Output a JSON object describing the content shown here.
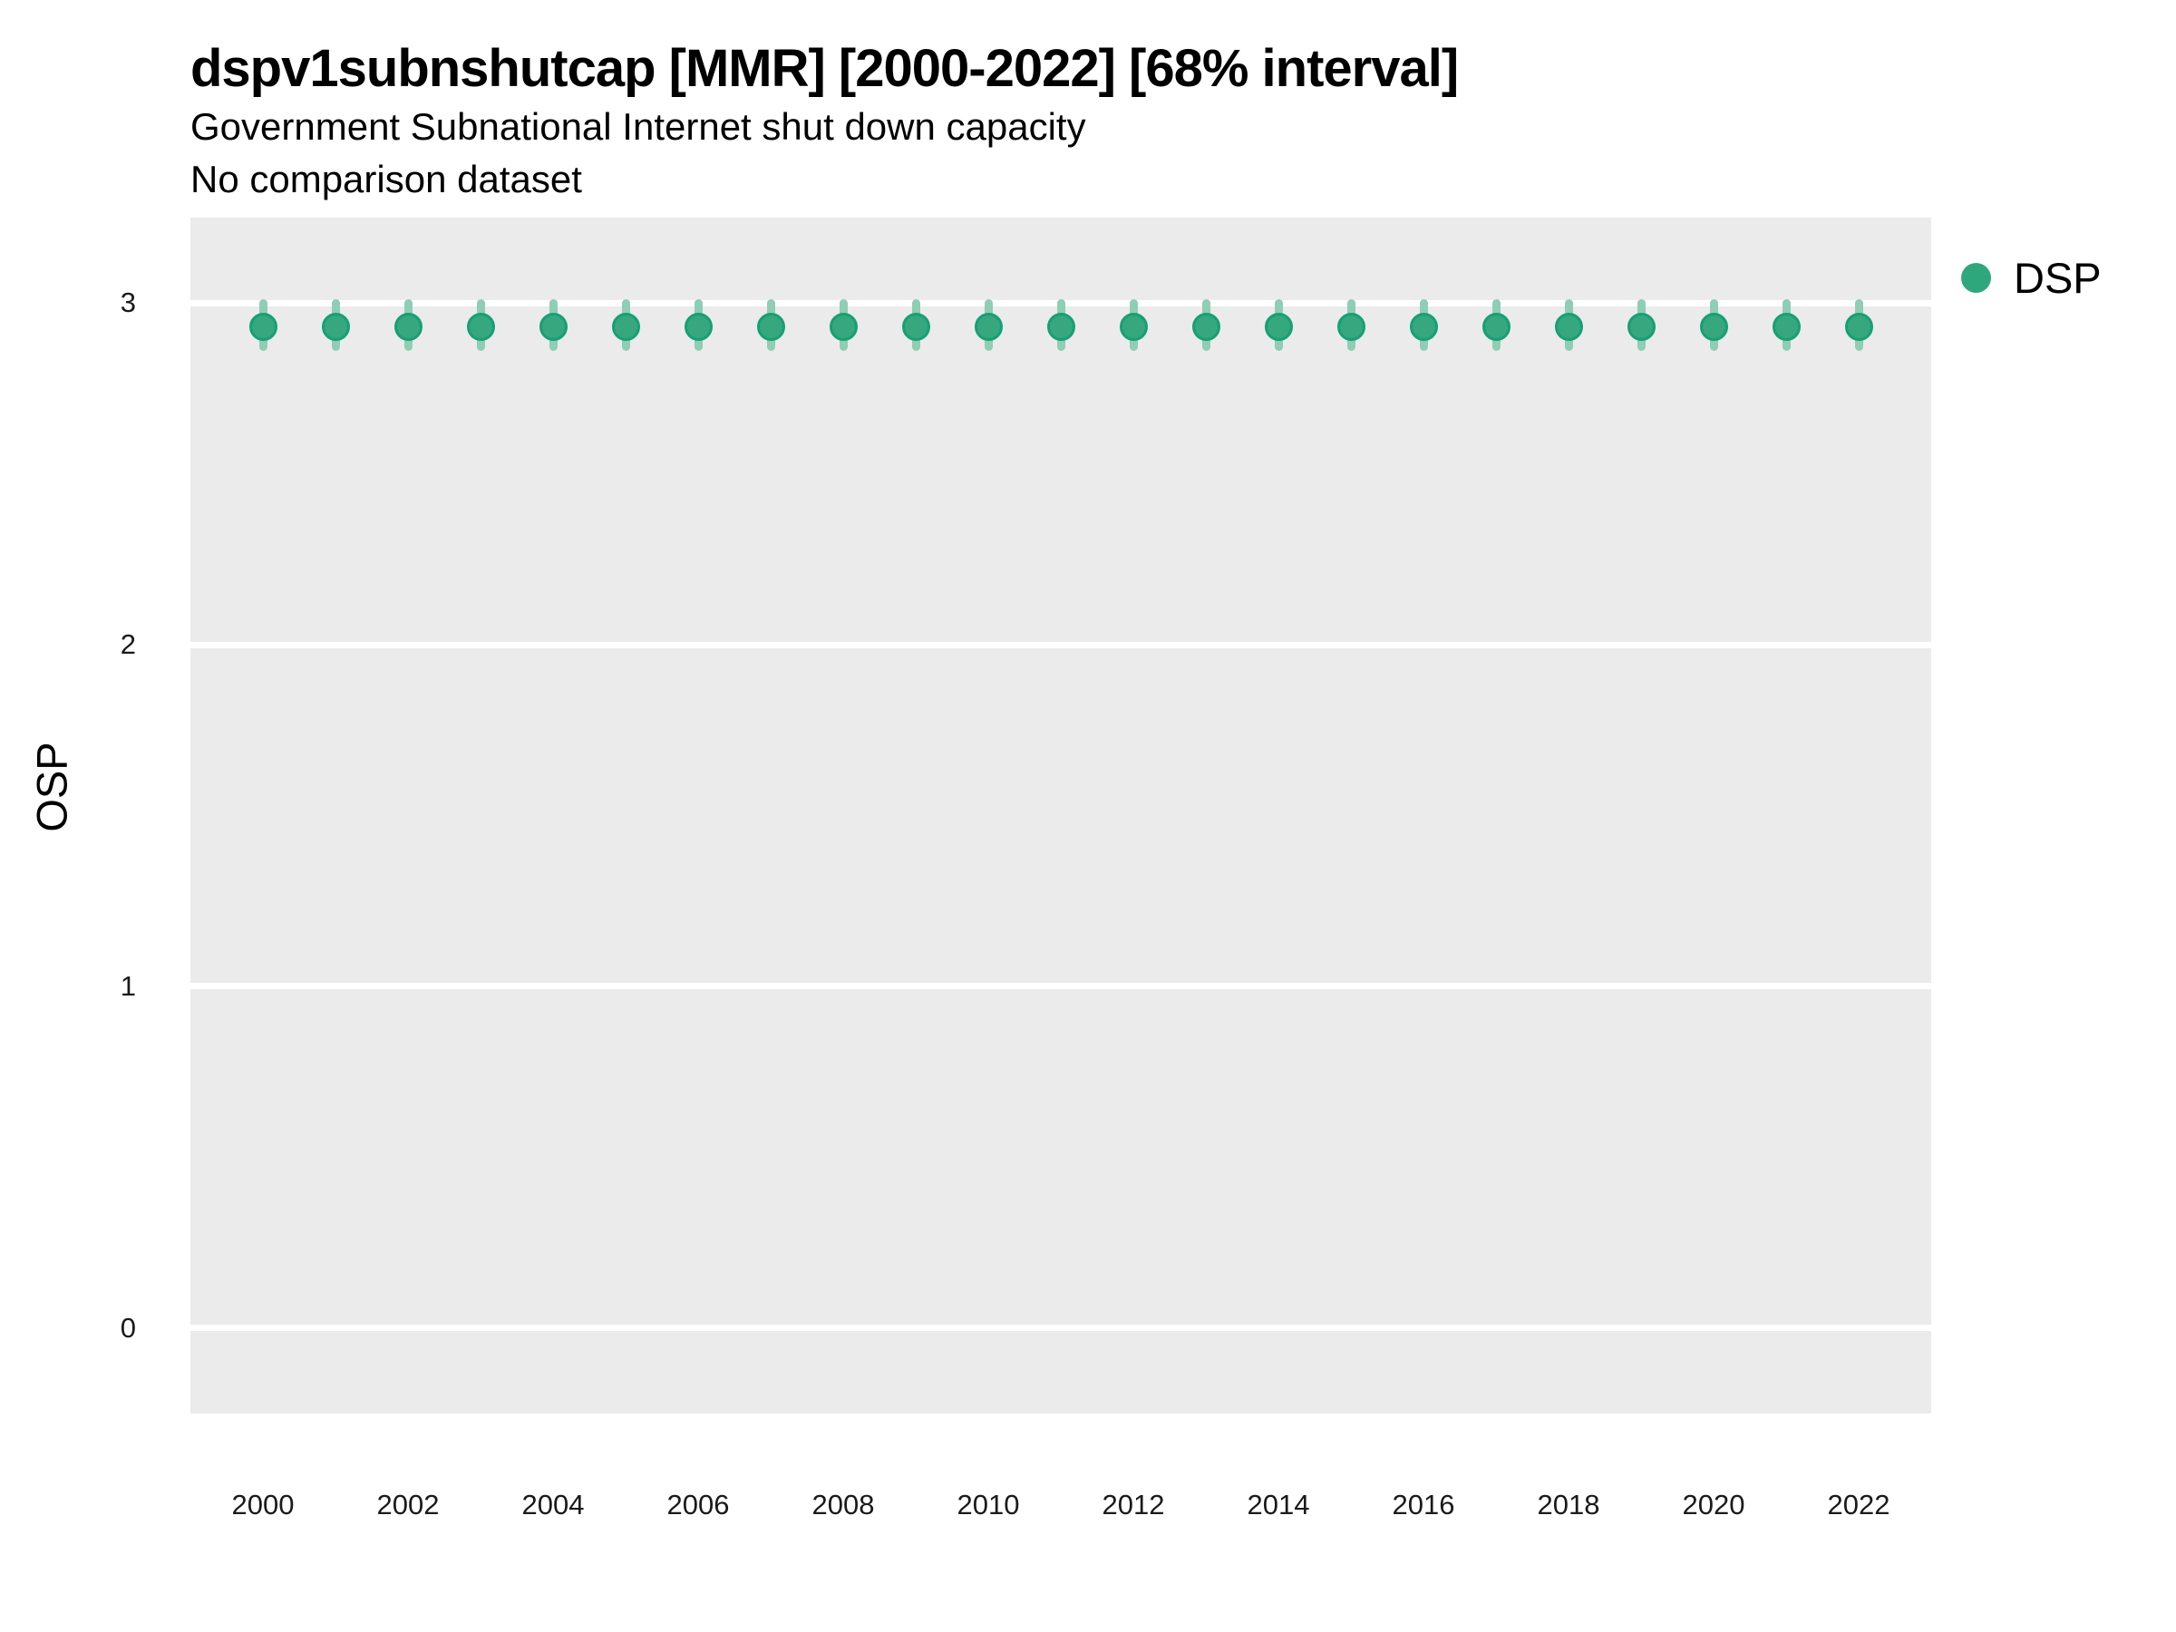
{
  "title": "dspv1subnshutcap [MMR] [2000-2022] [68% interval]",
  "subtitle": "Government Subnational Internet shut down capacity",
  "note": "No comparison dataset",
  "y_axis_label": "OSP",
  "legend": {
    "position": "right",
    "items": [
      {
        "label": "DSP",
        "color": "#2fa77d"
      }
    ]
  },
  "colors": {
    "panel_background": "#ebebeb",
    "gridline": "#ffffff",
    "point_fill": "#36a77e",
    "point_border": "#16a075",
    "interval_bar": "#8fcdb4",
    "title_text": "#000000",
    "tick_text": "#1a1a1a"
  },
  "chart_data": {
    "type": "scatter",
    "title": "dspv1subnshutcap [MMR] [2000-2022] [68% interval]",
    "subtitle": "Government Subnational Internet shut down capacity",
    "note": "No comparison dataset",
    "xlabel": "",
    "ylabel": "OSP",
    "interval_level": "68%",
    "x": [
      2000,
      2001,
      2002,
      2003,
      2004,
      2005,
      2006,
      2007,
      2008,
      2009,
      2010,
      2011,
      2012,
      2013,
      2014,
      2015,
      2016,
      2017,
      2018,
      2019,
      2020,
      2021,
      2022
    ],
    "series": [
      {
        "name": "DSP",
        "estimate": [
          2.93,
          2.93,
          2.93,
          2.93,
          2.93,
          2.93,
          2.93,
          2.93,
          2.93,
          2.93,
          2.93,
          2.93,
          2.93,
          2.93,
          2.93,
          2.93,
          2.93,
          2.93,
          2.93,
          2.93,
          2.93,
          2.93,
          2.93
        ],
        "interval_low": [
          2.86,
          2.86,
          2.86,
          2.86,
          2.86,
          2.86,
          2.86,
          2.86,
          2.86,
          2.86,
          2.86,
          2.86,
          2.86,
          2.86,
          2.86,
          2.86,
          2.86,
          2.86,
          2.86,
          2.86,
          2.86,
          2.86,
          2.86
        ],
        "interval_high": [
          3.01,
          3.01,
          3.01,
          3.01,
          3.01,
          3.01,
          3.01,
          3.01,
          3.01,
          3.01,
          3.01,
          3.01,
          3.01,
          3.01,
          3.01,
          3.01,
          3.01,
          3.01,
          3.01,
          3.01,
          3.01,
          3.01,
          3.01
        ]
      }
    ],
    "xticks": [
      2000,
      2002,
      2004,
      2006,
      2008,
      2010,
      2012,
      2014,
      2016,
      2018,
      2020,
      2022
    ],
    "yticks": [
      0,
      1,
      2,
      3
    ],
    "xlim": [
      1999,
      2023
    ],
    "ylim": [
      -0.25,
      3.25
    ],
    "grid": "horizontal-major-only",
    "legend_position": "right"
  }
}
